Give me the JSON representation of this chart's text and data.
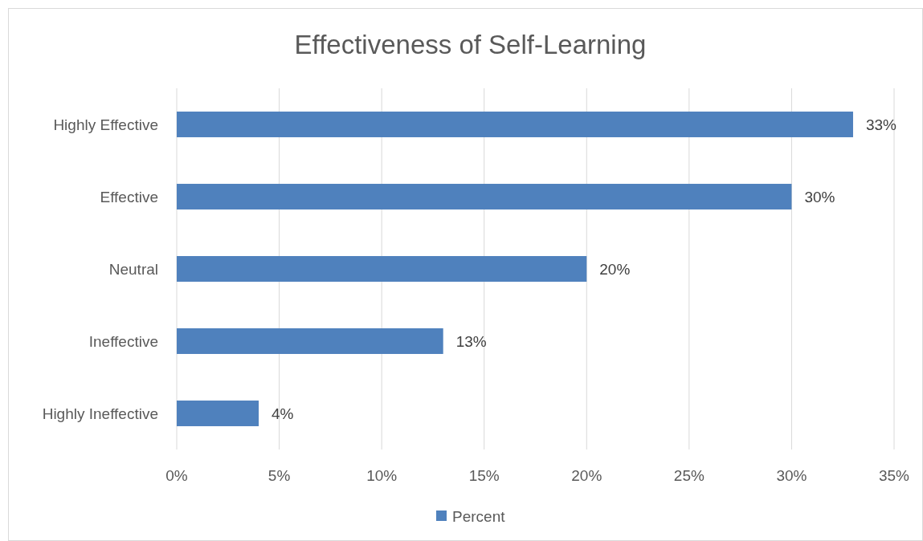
{
  "chart_data": {
    "type": "bar",
    "orientation": "horizontal",
    "title": "Effectiveness of Self-Learning",
    "categories": [
      "Highly Effective",
      "Effective",
      "Neutral",
      "Ineffective",
      "Highly Ineffective"
    ],
    "series": [
      {
        "name": "Percent",
        "color": "#4f81bd",
        "values": [
          33,
          30,
          20,
          13,
          4
        ],
        "value_labels": [
          "33%",
          "30%",
          "20%",
          "13%",
          "4%"
        ]
      }
    ],
    "xlim": [
      0,
      35
    ],
    "xticks": [
      {
        "value": 0,
        "label": "0%"
      },
      {
        "value": 5,
        "label": "5%"
      },
      {
        "value": 10,
        "label": "10%"
      },
      {
        "value": 15,
        "label": "15%"
      },
      {
        "value": 20,
        "label": "20%"
      },
      {
        "value": 25,
        "label": "25%"
      },
      {
        "value": 30,
        "label": "30%"
      },
      {
        "value": 35,
        "label": "35%"
      }
    ],
    "grid": "x",
    "legend": "bottom"
  }
}
